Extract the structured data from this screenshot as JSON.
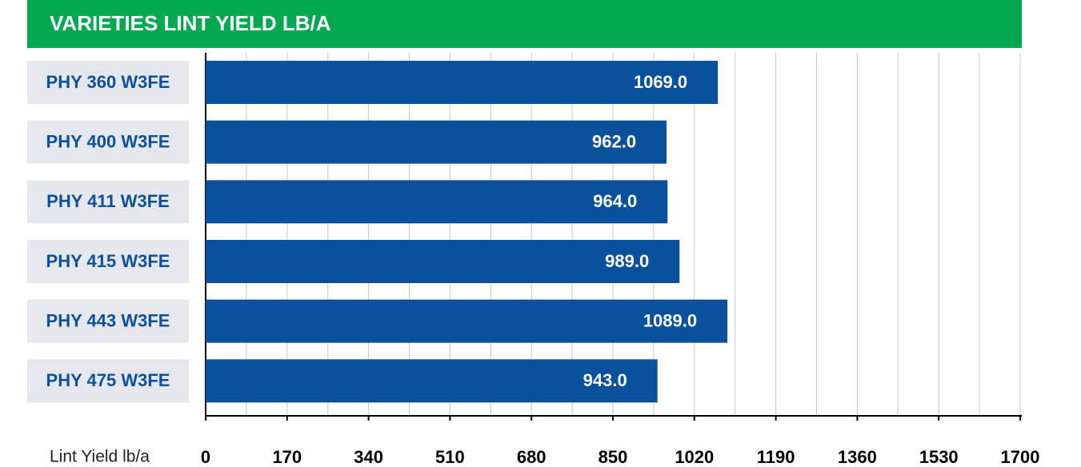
{
  "chart_data": {
    "type": "bar",
    "orientation": "horizontal",
    "title": "VARIETIES LINT YIELD LB/A",
    "xlabel": "Lint Yield lb/a",
    "categories": [
      "PHY 360 W3FE",
      "PHY 400 W3FE",
      "PHY 411 W3FE",
      "PHY 415 W3FE",
      "PHY 443 W3FE",
      "PHY 475 W3FE"
    ],
    "values": [
      1069,
      962,
      964,
      989,
      1089,
      943
    ],
    "value_labels": [
      "1069.0",
      "962.0",
      "964.0",
      "989.0",
      "1089.0",
      "943.0"
    ],
    "color": "#0a519d",
    "xlim": [
      0,
      1700
    ],
    "xticks": [
      0,
      170,
      340,
      510,
      680,
      850,
      1020,
      1190,
      1360,
      1530,
      1700
    ],
    "grid": true
  }
}
